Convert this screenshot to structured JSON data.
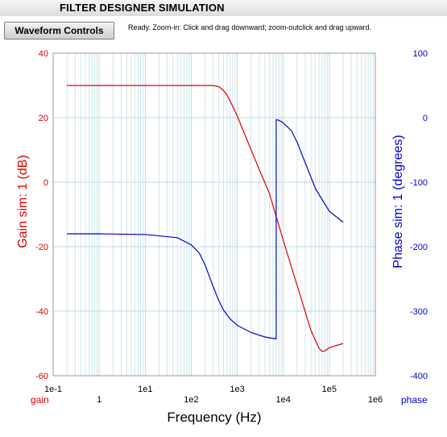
{
  "window": {
    "title": "FILTER DESIGNER SIMULATION"
  },
  "toolbar": {
    "waveform_button_label": "Waveform Controls",
    "status_text": "Ready.  Zoom-in: Click and drag downward; zoom-outclick and drag upward."
  },
  "colors": {
    "gain": "#dd0000",
    "phase": "#0000cc",
    "grid": "#b8dbe6",
    "frame": "#9a9a9a"
  },
  "chart_data": {
    "type": "line",
    "title": "",
    "xlabel": "Frequency (Hz)",
    "ylabel_left": "Gain sim:  1 (dB)",
    "ylabel_right": "Phase sim:  1 (degrees)",
    "xscale": "log",
    "xlim": [
      0.1,
      1000000
    ],
    "ylim_left": [
      -60,
      40
    ],
    "ylim_right": [
      -400,
      100
    ],
    "grid": true,
    "x_ticks": [
      "1e-1",
      "1",
      "1e1",
      "1e2",
      "1e3",
      "1e4",
      "1e5",
      "1e6"
    ],
    "y_ticks_left": [
      "40",
      "20",
      "0",
      "-20",
      "-40",
      "-60"
    ],
    "y_ticks_right": [
      "100",
      "0",
      "-100",
      "-200",
      "-300",
      "-400"
    ],
    "axis_tags": {
      "left": "gain",
      "right": "phase"
    },
    "series": [
      {
        "axis": "left",
        "x": [
          0.2,
          1,
          10,
          100,
          200,
          300,
          400,
          500,
          600,
          800,
          1000,
          2000,
          3000,
          5000,
          10000,
          20000,
          40000,
          60000,
          70000,
          80000,
          100000,
          200000
        ],
        "y": [
          30,
          30,
          30,
          30,
          30,
          30,
          29.6,
          28.5,
          27,
          23.5,
          20.5,
          10,
          4,
          -3.5,
          -18,
          -32,
          -46,
          -51.5,
          -52.5,
          -52.3,
          -51.3,
          -50
        ]
      },
      {
        "axis": "right",
        "x": [
          0.2,
          1,
          10,
          50,
          100,
          150,
          200,
          300,
          400,
          500,
          700,
          1000,
          2000,
          4000,
          7000,
          7000,
          8000,
          10000,
          15000,
          20000,
          30000,
          50000,
          100000,
          200000
        ],
        "y": [
          -180,
          -180,
          -181,
          -186,
          -197,
          -210,
          -228,
          -262,
          -284,
          -298,
          -312,
          -322,
          -333,
          -340,
          -343,
          -3,
          -4,
          -8,
          -20,
          -38,
          -70,
          -110,
          -145,
          -162
        ]
      }
    ]
  }
}
